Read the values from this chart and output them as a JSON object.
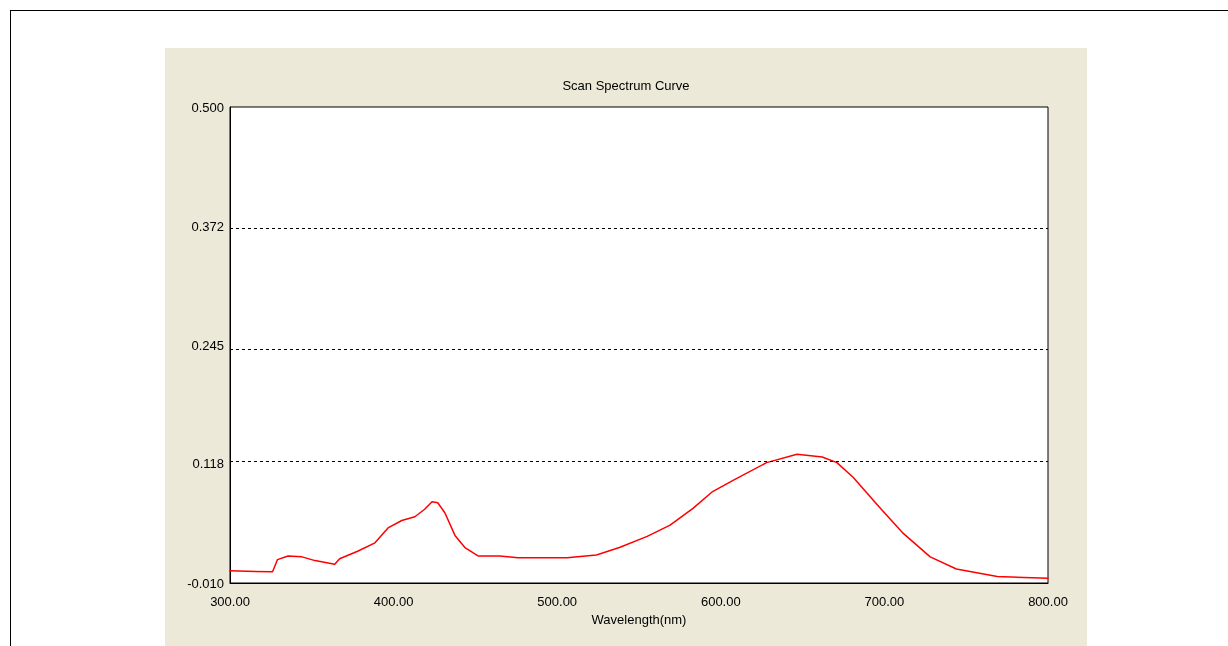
{
  "chart_data": {
    "type": "line",
    "title": "Scan Spectrum Curve",
    "xlabel": "Wavelength(nm)",
    "xlim": [
      300,
      800
    ],
    "xticks": [
      {
        "value": 300,
        "label": "300.00"
      },
      {
        "value": 400,
        "label": "400.00"
      },
      {
        "value": 500,
        "label": "500.00"
      },
      {
        "value": 600,
        "label": "600.00"
      },
      {
        "value": 700,
        "label": "700.00"
      },
      {
        "value": 800,
        "label": "800.00"
      }
    ],
    "ylim": [
      -0.01,
      0.5
    ],
    "yticks": [
      {
        "value": -0.01,
        "label": "-0.010"
      },
      0.118,
      0.245,
      0.372,
      {
        "value": 0.5,
        "label": "0.500"
      }
    ],
    "grid": "y",
    "marker": "none",
    "line_style": "solid",
    "series": [
      {
        "color": "#ff0000",
        "x": [
          300,
          326,
          329,
          335.5,
          344,
          352,
          364,
          367,
          378,
          388.6,
          396.6,
          405,
          413,
          419,
          423.5,
          427,
          431.4,
          437.5,
          443.6,
          451.6,
          465,
          476,
          506,
          524,
          538,
          555,
          569,
          583,
          595,
          607.5,
          628,
          646.6,
          662,
          671,
          681,
          695.5,
          711,
          728,
          744,
          769,
          800
        ],
        "values": [
          0.003,
          0.002,
          0.015,
          0.019,
          0.018,
          0.014,
          0.01,
          0.016,
          0.024,
          0.033,
          0.049,
          0.057,
          0.061,
          0.069,
          0.077,
          0.076,
          0.065,
          0.041,
          0.028,
          0.019,
          0.019,
          0.017,
          0.017,
          0.02,
          0.028,
          0.04,
          0.052,
          0.07,
          0.088,
          0.1,
          0.119,
          0.128,
          0.125,
          0.119,
          0.103,
          0.074,
          0.044,
          0.018,
          0.005,
          -0.003,
          -0.005
        ]
      }
    ]
  }
}
